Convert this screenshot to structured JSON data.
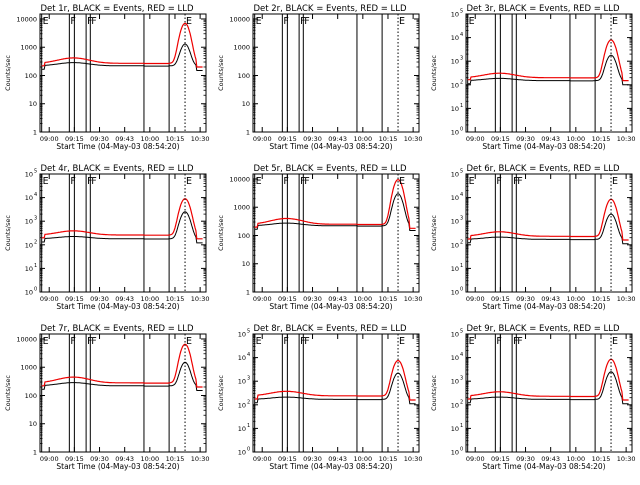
{
  "figure": {
    "description_title_template": "{det}, BLACK = Events, RED = LLD",
    "x_axis_label": "Start Time (04-May-03 08:54:20)",
    "y_axis_label": "Counts/sec",
    "x_tick_labels": [
      "09:00",
      "09:15",
      "09:30",
      "09:43",
      "10:00",
      "10:15",
      "10:30"
    ],
    "colors": {
      "events": "#000000",
      "lld": "#ee0000",
      "frame": "#000000"
    }
  },
  "chart_data": [
    {
      "type": "line",
      "detector": "Det 1r",
      "title": "Det 1r, BLACK = Events, RED = LLD",
      "ylim": [
        1,
        15000
      ],
      "y_tick_style": "plain",
      "y_tick_labels": [
        "1",
        "10",
        "100",
        "1000",
        "10000"
      ],
      "xlabel": "Start Time (04-May-03 08:54:20)",
      "ylabel": "Counts/sec",
      "x_ticks": [
        "09:00",
        "09:15",
        "09:30",
        "09:43",
        "10:00",
        "10:15",
        "10:30"
      ],
      "series": [
        {
          "name": "Events",
          "baseline": 220,
          "bump": 1.3,
          "peak": 1300,
          "peak_min": 86.5,
          "ends": 150
        },
        {
          "name": "LLD",
          "baseline": 270,
          "bump": 1.55,
          "peak": 7000,
          "peak_min": 86.5,
          "ends": 200
        }
      ],
      "markers": [
        {
          "label": "E",
          "minute": 1.0
        },
        {
          "label": "F",
          "minute": 17.5
        },
        {
          "label": "F",
          "minute": 27.5
        },
        {
          "label": "F",
          "minute": 30.0
        },
        {
          "label": "E",
          "minute": 86.5
        }
      ],
      "intervals_min": [
        1.0,
        17.5,
        20.5,
        27.5,
        30.0,
        62.0,
        77.0
      ]
    },
    {
      "type": "line",
      "detector": "Det 2r",
      "title": "Det 2r, BLACK = Events, RED = LLD",
      "ylim": [
        1,
        15000
      ],
      "y_tick_style": "plain",
      "y_tick_labels": [
        "1",
        "10",
        "100",
        "1000",
        "10000"
      ],
      "xlabel": "Start Time (04-May-03 08:54:20)",
      "ylabel": "Counts/sec",
      "x_ticks": [
        "09:00",
        "09:15",
        "09:30",
        "09:43",
        "10:00",
        "10:15",
        "10:30"
      ],
      "series": [],
      "markers": [
        {
          "label": "E",
          "minute": 1.0
        },
        {
          "label": "F",
          "minute": 17.5
        },
        {
          "label": "F",
          "minute": 27.5
        },
        {
          "label": "F",
          "minute": 30.0
        },
        {
          "label": "E",
          "minute": 86.5
        }
      ],
      "intervals_min": [
        1.0,
        17.5,
        20.5,
        27.5,
        30.0,
        62.0,
        77.0
      ]
    },
    {
      "type": "line",
      "detector": "Det 3r",
      "title": "Det 3r, BLACK = Events, RED = LLD",
      "ylim": [
        1,
        100000
      ],
      "y_tick_style": "power",
      "y_tick_labels": [
        "0",
        "1",
        "2",
        "3",
        "4",
        "5"
      ],
      "xlabel": "Start Time (04-May-03 08:54:20)",
      "ylabel": "Counts/sec",
      "x_ticks": [
        "09:00",
        "09:15",
        "09:30",
        "09:43",
        "10:00",
        "10:15",
        "10:30"
      ],
      "series": [
        {
          "name": "Events",
          "baseline": 150,
          "bump": 1.25,
          "peak": 1800,
          "peak_min": 86.5,
          "ends": 100
        },
        {
          "name": "LLD",
          "baseline": 200,
          "bump": 1.55,
          "peak": 8000,
          "peak_min": 86.5,
          "ends": 150
        }
      ],
      "markers": [
        {
          "label": "E",
          "minute": 1.0
        },
        {
          "label": "E",
          "minute": 86.5
        }
      ],
      "intervals_min": [
        1.0,
        17.5,
        20.5,
        27.5,
        30.0,
        62.0,
        77.0
      ]
    },
    {
      "type": "line",
      "detector": "Det 4r",
      "title": "Det 4r, BLACK = Events, RED = LLD",
      "ylim": [
        1,
        100000
      ],
      "y_tick_style": "power",
      "y_tick_labels": [
        "0",
        "1",
        "2",
        "3",
        "4",
        "5"
      ],
      "xlabel": "Start Time (04-May-03 08:54:20)",
      "ylabel": "Counts/sec",
      "x_ticks": [
        "09:00",
        "09:15",
        "09:30",
        "09:43",
        "10:00",
        "10:15",
        "10:30"
      ],
      "series": [
        {
          "name": "Events",
          "baseline": 180,
          "bump": 1.25,
          "peak": 2500,
          "peak_min": 86.5,
          "ends": 120
        },
        {
          "name": "LLD",
          "baseline": 260,
          "bump": 1.5,
          "peak": 9000,
          "peak_min": 86.5,
          "ends": 180
        }
      ],
      "markers": [
        {
          "label": "E",
          "minute": 1.0
        },
        {
          "label": "F",
          "minute": 17.5
        },
        {
          "label": "F",
          "minute": 27.5
        },
        {
          "label": "F",
          "minute": 30.0
        },
        {
          "label": "E",
          "minute": 86.5
        }
      ],
      "intervals_min": [
        1.0,
        17.5,
        20.5,
        27.5,
        30.0,
        62.0,
        77.0
      ]
    },
    {
      "type": "line",
      "detector": "Det 5r",
      "title": "Det 5r, BLACK = Events, RED = LLD",
      "ylim": [
        1,
        15000
      ],
      "y_tick_style": "plain",
      "y_tick_labels": [
        "1",
        "10",
        "100",
        "1000",
        "10000"
      ],
      "xlabel": "Start Time (04-May-03 08:54:20)",
      "ylabel": "Counts/sec",
      "x_ticks": [
        "09:00",
        "09:15",
        "09:30",
        "09:43",
        "10:00",
        "10:15",
        "10:30"
      ],
      "series": [
        {
          "name": "Events",
          "baseline": 220,
          "bump": 1.25,
          "peak": 3000,
          "peak_min": 86.5,
          "ends": 150
        },
        {
          "name": "LLD",
          "baseline": 250,
          "bump": 1.6,
          "peak": 9500,
          "peak_min": 86.5,
          "ends": 180
        }
      ],
      "markers": [
        {
          "label": "E",
          "minute": 1.0
        },
        {
          "label": "F",
          "minute": 17.5
        },
        {
          "label": "F",
          "minute": 27.5
        },
        {
          "label": "F",
          "minute": 30.0
        },
        {
          "label": "E",
          "minute": 86.5
        }
      ],
      "intervals_min": [
        1.0,
        17.5,
        20.5,
        27.5,
        30.0,
        62.0,
        77.0
      ]
    },
    {
      "type": "line",
      "detector": "Det 6r",
      "title": "Det 6r, BLACK = Events, RED = LLD",
      "ylim": [
        1,
        100000
      ],
      "y_tick_style": "power",
      "y_tick_labels": [
        "0",
        "1",
        "2",
        "3",
        "4",
        "5"
      ],
      "xlabel": "Start Time (04-May-03 08:54:20)",
      "ylabel": "Counts/sec",
      "x_ticks": [
        "09:00",
        "09:15",
        "09:30",
        "09:43",
        "10:00",
        "10:15",
        "10:30"
      ],
      "series": [
        {
          "name": "Events",
          "baseline": 170,
          "bump": 1.25,
          "peak": 2000,
          "peak_min": 86.5,
          "ends": 110
        },
        {
          "name": "LLD",
          "baseline": 230,
          "bump": 1.55,
          "peak": 8500,
          "peak_min": 86.5,
          "ends": 160
        }
      ],
      "markers": [
        {
          "label": "E",
          "minute": 1.0
        },
        {
          "label": "F",
          "minute": 17.5
        },
        {
          "label": "F",
          "minute": 27.5
        },
        {
          "label": "F",
          "minute": 30.0
        },
        {
          "label": "E",
          "minute": 86.5
        }
      ],
      "intervals_min": [
        1.0,
        17.5,
        20.5,
        27.5,
        30.0,
        62.0,
        77.0
      ]
    },
    {
      "type": "line",
      "detector": "Det 7r",
      "title": "Det 7r, BLACK = Events, RED = LLD",
      "ylim": [
        1,
        15000
      ],
      "y_tick_style": "plain",
      "y_tick_labels": [
        "1",
        "10",
        "100",
        "1000",
        "10000"
      ],
      "xlabel": "Start Time (04-May-03 08:54:20)",
      "ylabel": "Counts/sec",
      "x_ticks": [
        "09:00",
        "09:15",
        "09:30",
        "09:43",
        "10:00",
        "10:15",
        "10:30"
      ],
      "series": [
        {
          "name": "Events",
          "baseline": 220,
          "bump": 1.3,
          "peak": 1500,
          "peak_min": 86.5,
          "ends": 150
        },
        {
          "name": "LLD",
          "baseline": 280,
          "bump": 1.6,
          "peak": 6500,
          "peak_min": 86.5,
          "ends": 200
        }
      ],
      "markers": [
        {
          "label": "E",
          "minute": 1.0
        },
        {
          "label": "F",
          "minute": 17.5
        },
        {
          "label": "F",
          "minute": 27.5
        },
        {
          "label": "F",
          "minute": 30.0
        },
        {
          "label": "E",
          "minute": 86.5
        }
      ],
      "intervals_min": [
        1.0,
        17.5,
        20.5,
        27.5,
        30.0,
        62.0,
        77.0
      ]
    },
    {
      "type": "line",
      "detector": "Det 8r",
      "title": "Det 8r, BLACK = Events, RED = LLD",
      "ylim": [
        1,
        100000
      ],
      "y_tick_style": "power",
      "y_tick_labels": [
        "0",
        "1",
        "2",
        "3",
        "4",
        "5"
      ],
      "xlabel": "Start Time (04-May-03 08:54:20)",
      "ylabel": "Counts/sec",
      "x_ticks": [
        "09:00",
        "09:15",
        "09:30",
        "09:43",
        "10:00",
        "10:15",
        "10:30"
      ],
      "series": [
        {
          "name": "Events",
          "baseline": 170,
          "bump": 1.25,
          "peak": 2200,
          "peak_min": 86.5,
          "ends": 110
        },
        {
          "name": "LLD",
          "baseline": 240,
          "bump": 1.55,
          "peak": 7500,
          "peak_min": 86.5,
          "ends": 160
        }
      ],
      "markers": [
        {
          "label": "E",
          "minute": 1.0
        },
        {
          "label": "F",
          "minute": 17.5
        },
        {
          "label": "F",
          "minute": 27.5
        },
        {
          "label": "F",
          "minute": 30.0
        },
        {
          "label": "E",
          "minute": 86.5
        }
      ],
      "intervals_min": [
        1.0,
        17.5,
        20.5,
        27.5,
        30.0,
        62.0,
        77.0
      ]
    },
    {
      "type": "line",
      "detector": "Det 9r",
      "title": "Det 9r, BLACK = Events, RED = LLD",
      "ylim": [
        1,
        100000
      ],
      "y_tick_style": "power",
      "y_tick_labels": [
        "0",
        "1",
        "2",
        "3",
        "4",
        "5"
      ],
      "xlabel": "Start Time (04-May-03 08:54:20)",
      "ylabel": "Counts/sec",
      "x_ticks": [
        "09:00",
        "09:15",
        "09:30",
        "09:43",
        "10:00",
        "10:15",
        "10:30"
      ],
      "series": [
        {
          "name": "Events",
          "baseline": 170,
          "bump": 1.25,
          "peak": 2500,
          "peak_min": 86.5,
          "ends": 110
        },
        {
          "name": "LLD",
          "baseline": 230,
          "bump": 1.55,
          "peak": 8500,
          "peak_min": 86.5,
          "ends": 160
        }
      ],
      "markers": [
        {
          "label": "E",
          "minute": 1.0
        },
        {
          "label": "F",
          "minute": 17.5
        },
        {
          "label": "F",
          "minute": 27.5
        },
        {
          "label": "F",
          "minute": 30.0
        },
        {
          "label": "E",
          "minute": 86.5
        }
      ],
      "intervals_min": [
        1.0,
        17.5,
        20.5,
        27.5,
        30.0,
        62.0,
        77.0
      ]
    }
  ]
}
